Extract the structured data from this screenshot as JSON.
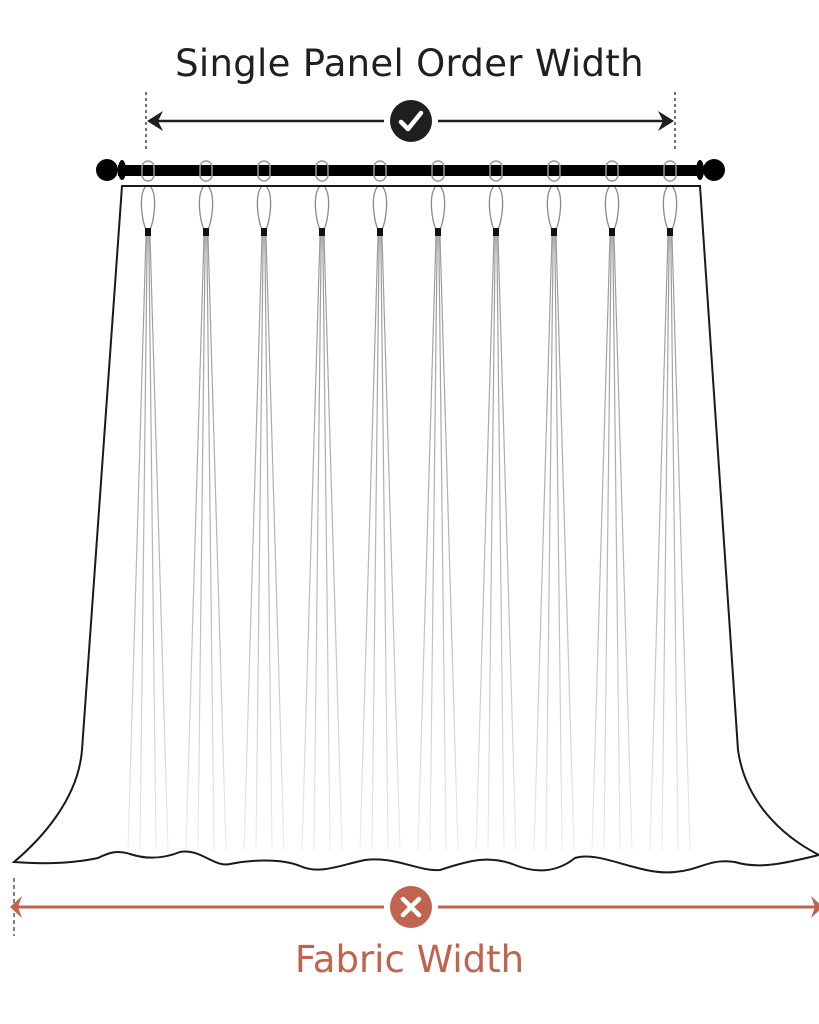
{
  "top_dimension": {
    "label": "Single Panel Order Width",
    "icon": "check-circle-icon",
    "color": "#1f1f1f"
  },
  "bottom_dimension": {
    "label": "Fabric Width",
    "icon": "x-circle-icon",
    "color": "#c0634f"
  },
  "pleats": 10
}
